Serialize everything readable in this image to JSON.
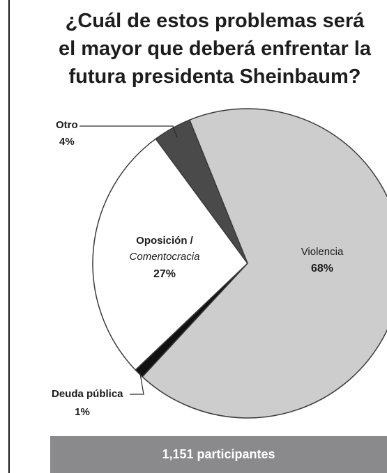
{
  "title_lines": [
    "¿Cuál de estos problemas será",
    "el mayor que deberá enfrentar la",
    "futura presidenta Sheinbaum?"
  ],
  "chart_data": {
    "type": "pie",
    "title": "¿Cuál de estos problemas será el mayor que deberá enfrentar la futura presidenta Sheinbaum?",
    "slices": [
      {
        "label": "Violencia",
        "value": 68,
        "value_label": "68%",
        "color": "#cdcdcd"
      },
      {
        "label": "Deuda pública",
        "value": 1,
        "value_label": "1%",
        "color": "#111111"
      },
      {
        "label": "Oposición / Comentocracia",
        "label_line1": "Oposición /",
        "label_line2": "Comentocracia",
        "value": 27,
        "value_label": "27%",
        "color": "#ffffff"
      },
      {
        "label": "Otro",
        "value": 4,
        "value_label": "4%",
        "color": "#4a4a4a"
      }
    ],
    "legend": "none"
  },
  "footer": {
    "participants": "1,151 participantes"
  },
  "colors": {
    "footer_bg": "#8a8a8c",
    "outline": "#3a3a3a"
  }
}
